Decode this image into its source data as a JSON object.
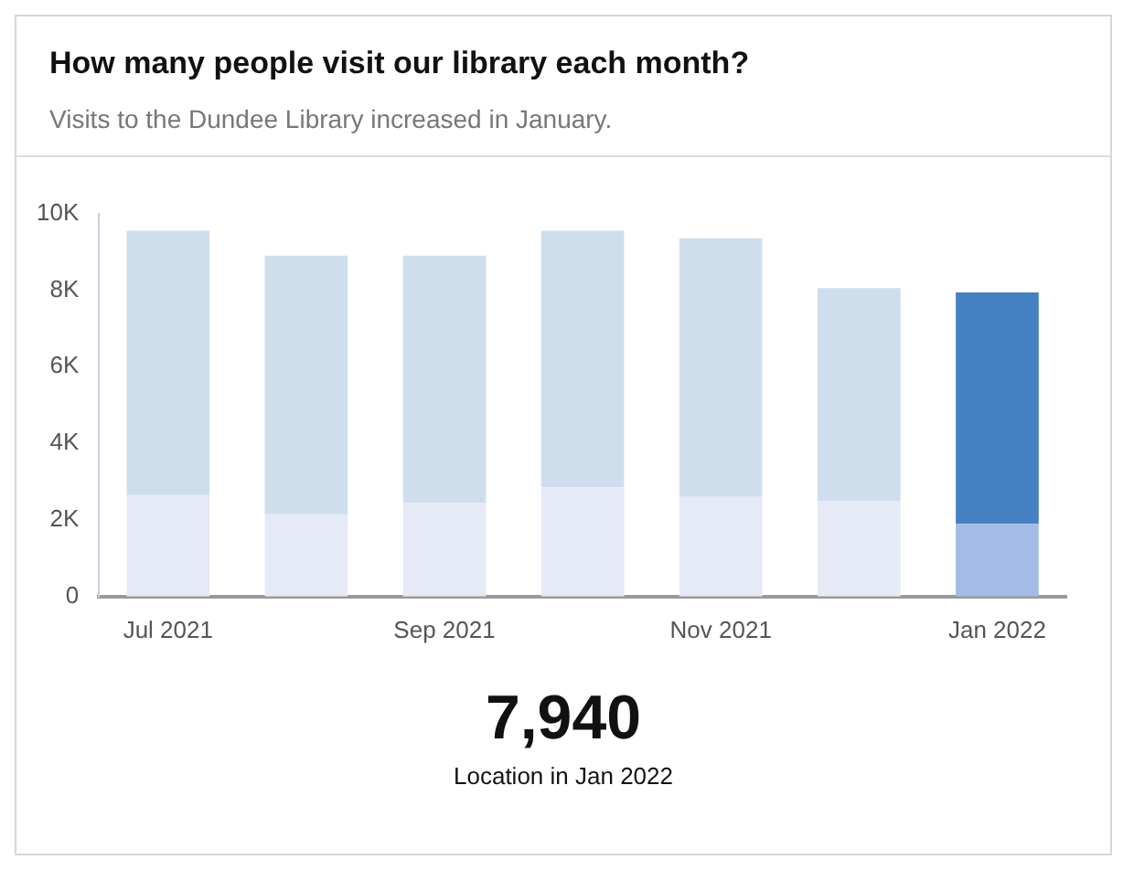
{
  "chart_data": {
    "type": "bar",
    "title": "How many people visit our library each month?",
    "subtitle": "Visits to the Dundee Library increased in January.",
    "categories": [
      "Jul 2021",
      null,
      "Sep 2021",
      null,
      "Nov 2021",
      null,
      "Jan 2022"
    ],
    "stacked": true,
    "series": [
      {
        "colors": [
          "#e6eaf6",
          "#e6eaf6",
          "#e6eaf6",
          "#e6eaf6",
          "#e6eaf6",
          "#e6eaf6",
          "#a3bbe6"
        ],
        "values": [
          2650,
          2150,
          2450,
          2850,
          2600,
          2500,
          1900
        ]
      },
      {
        "colors": [
          "#cfdeed",
          "#cfdeed",
          "#cfdeed",
          "#cfdeed",
          "#cfdeed",
          "#cfdeed",
          "#4580c2"
        ],
        "values": [
          6900,
          6750,
          6450,
          6700,
          6750,
          5550,
          6040
        ]
      }
    ],
    "ylim": [
      0,
      10000
    ],
    "yticks": [
      0,
      {
        "value": 2000,
        "label": "2K"
      },
      {
        "value": 4000,
        "label": "4K"
      },
      {
        "value": 6000,
        "label": "6K"
      },
      {
        "value": 8000,
        "label": "8K"
      },
      {
        "value": 10000,
        "label": "10K"
      }
    ],
    "grid": false,
    "legend": false,
    "annotations": [
      "7,940",
      "Location in Jan 2022"
    ]
  }
}
